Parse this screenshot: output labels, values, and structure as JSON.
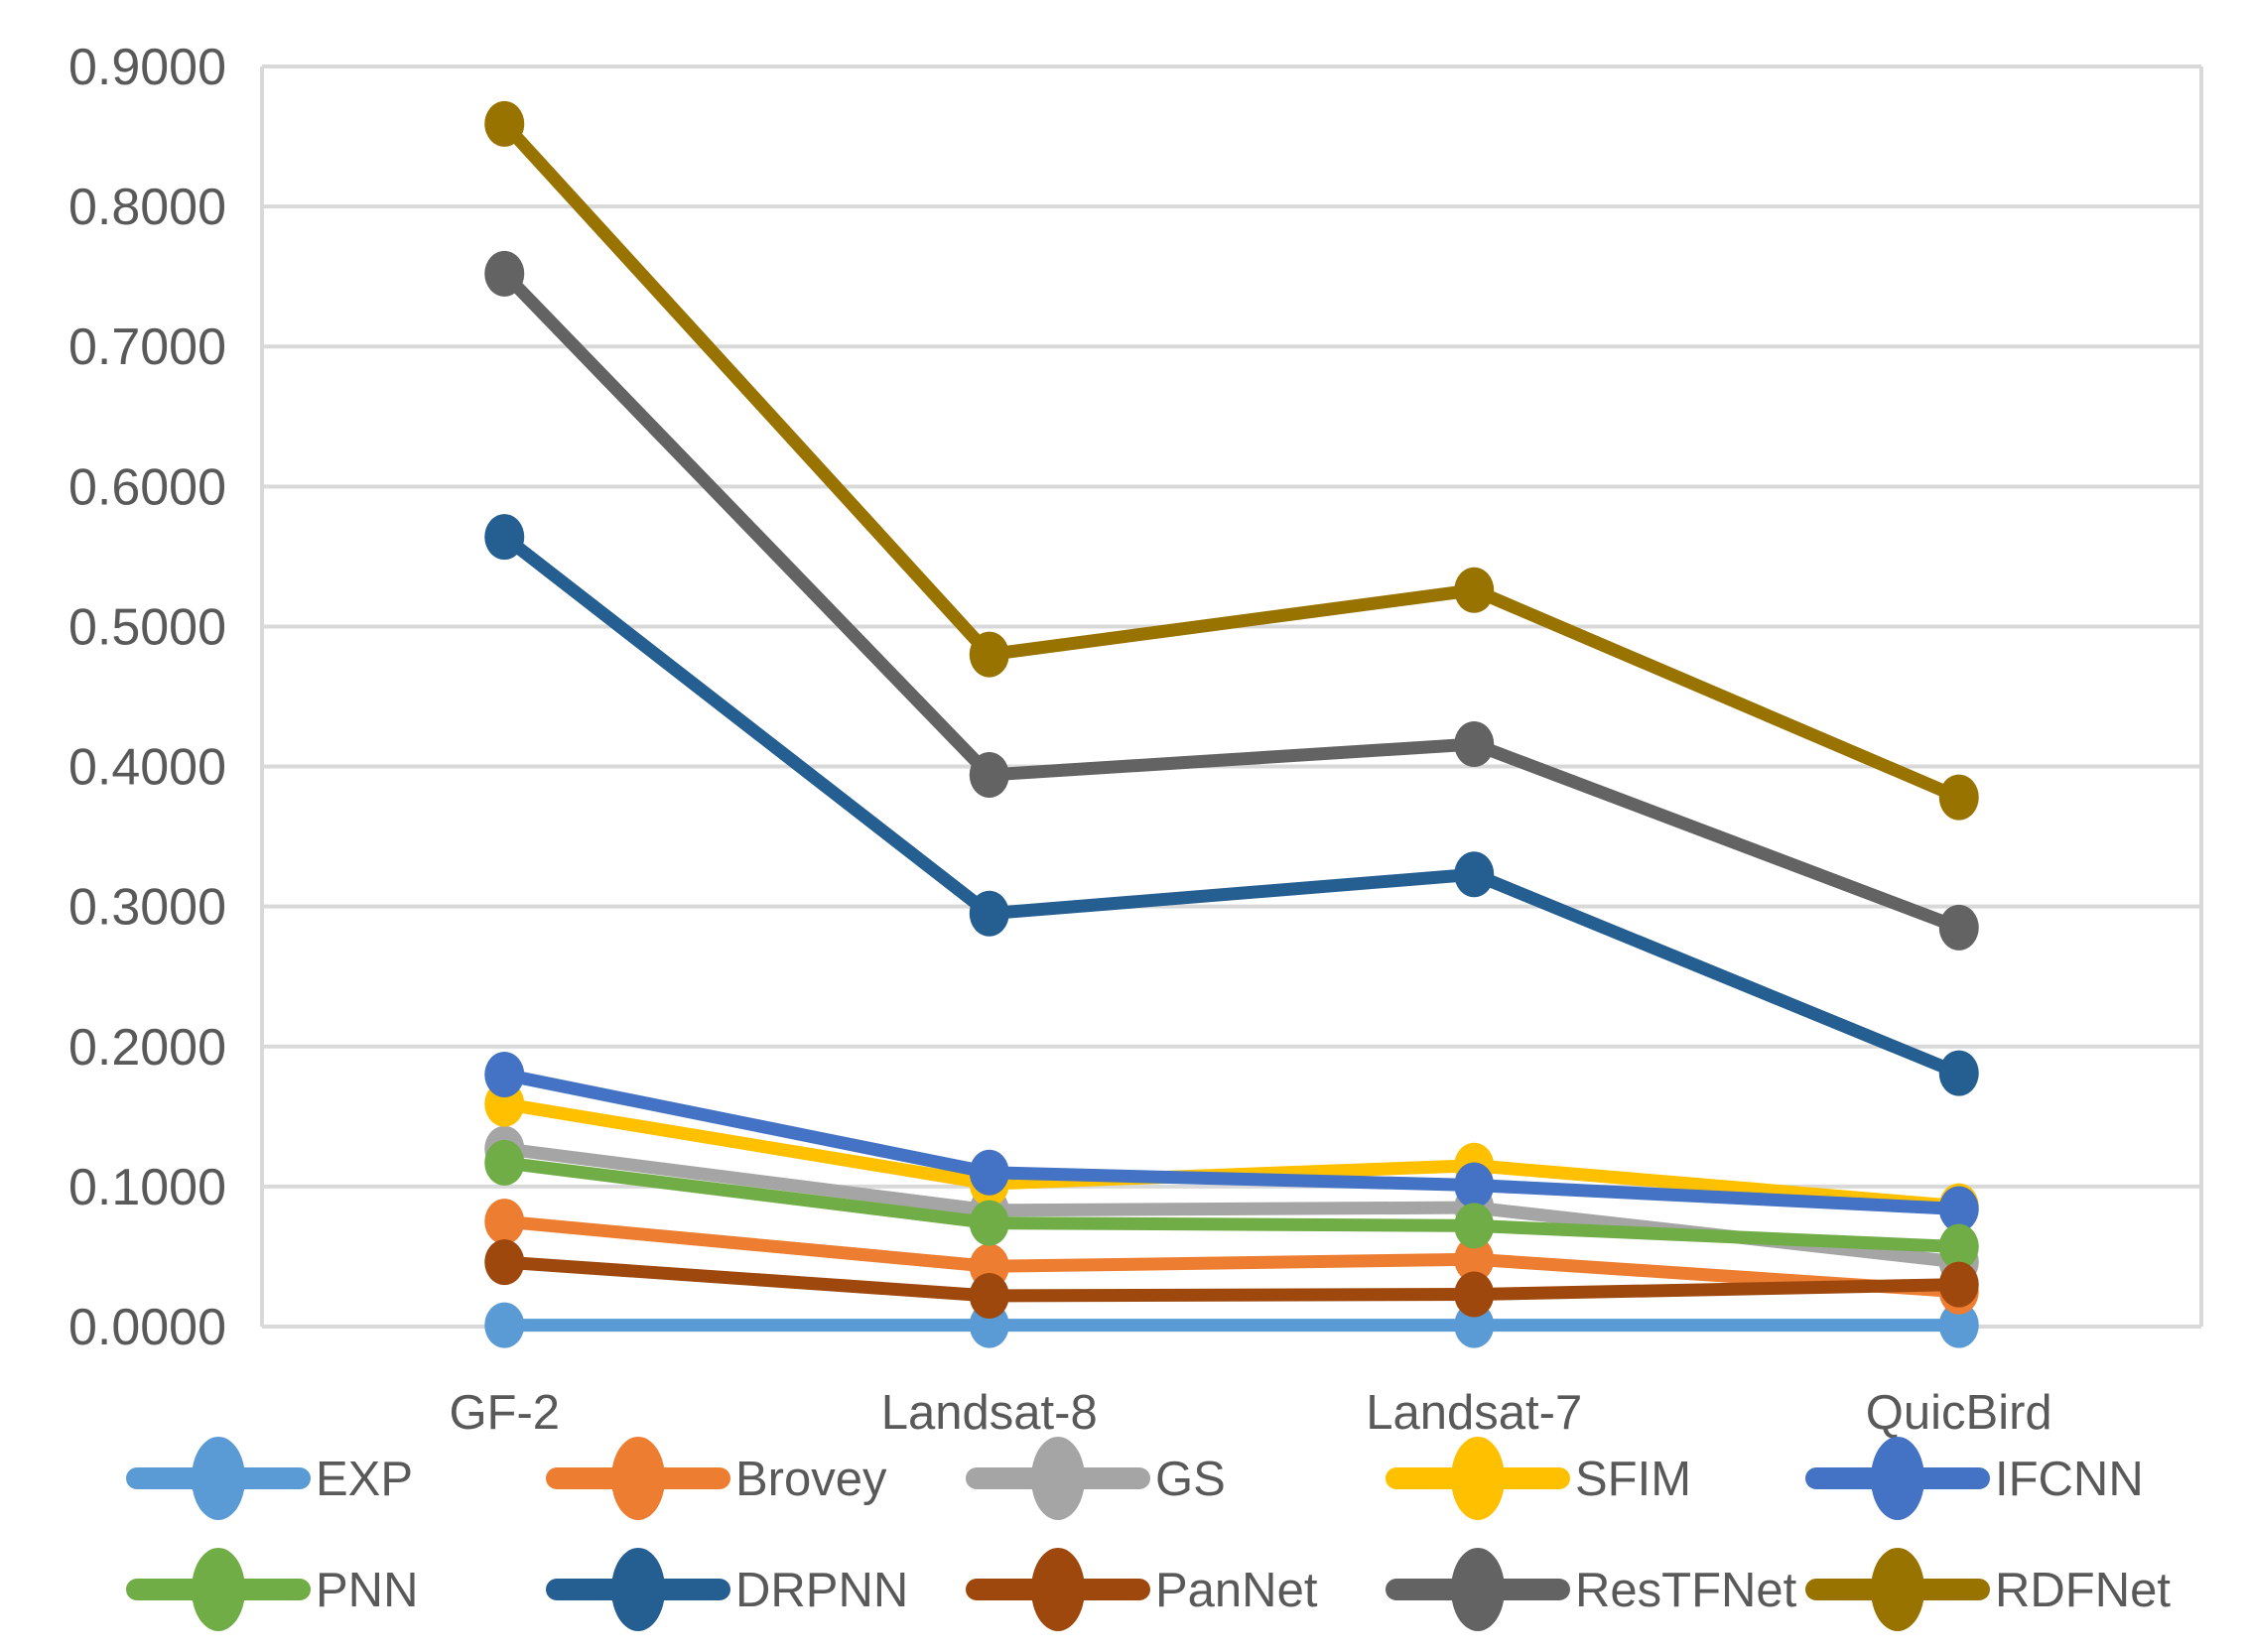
{
  "figure": {
    "background_color": "#FFFFFF",
    "gridline_color": "#D9D9D9",
    "text_color": "#595959"
  },
  "chart_data": {
    "type": "line",
    "title": "",
    "xlabel": "",
    "ylabel": "",
    "grid": true,
    "legend_position": "bottom",
    "ylim": [
      0.0,
      0.9
    ],
    "ytick_format": "4-decimal",
    "yticks": [
      "0.0000",
      "0.1000",
      "0.2000",
      "0.3000",
      "0.4000",
      "0.5000",
      "0.6000",
      "0.7000",
      "0.8000",
      "0.9000"
    ],
    "categories": [
      "GF-2",
      "Landsat-8",
      "Landsat-7",
      "QuicBird"
    ],
    "series": [
      {
        "name": "EXP",
        "color": "#5B9BD5",
        "values": [
          0.001,
          0.001,
          0.001,
          0.001
        ]
      },
      {
        "name": "Brovey",
        "color": "#ED7D31",
        "values": [
          0.075,
          0.043,
          0.048,
          0.025
        ]
      },
      {
        "name": "GS",
        "color": "#A5A5A5",
        "values": [
          0.127,
          0.083,
          0.085,
          0.046
        ]
      },
      {
        "name": "SFIM",
        "color": "#FFC000",
        "values": [
          0.159,
          0.102,
          0.115,
          0.086
        ]
      },
      {
        "name": "IFCNN",
        "color": "#4472C4",
        "values": [
          0.18,
          0.11,
          0.101,
          0.084
        ]
      },
      {
        "name": "PNN",
        "color": "#70AD47",
        "values": [
          0.117,
          0.074,
          0.072,
          0.057
        ]
      },
      {
        "name": "DRPNN",
        "color": "#255E91",
        "values": [
          0.564,
          0.295,
          0.323,
          0.181
        ]
      },
      {
        "name": "PanNet",
        "color": "#9E480E",
        "values": [
          0.046,
          0.022,
          0.023,
          0.03
        ]
      },
      {
        "name": "ResTFNet",
        "color": "#636363",
        "values": [
          0.752,
          0.394,
          0.416,
          0.285
        ]
      },
      {
        "name": "RDFNet",
        "color": "#997300",
        "values": [
          0.859,
          0.48,
          0.526,
          0.378
        ]
      }
    ]
  }
}
